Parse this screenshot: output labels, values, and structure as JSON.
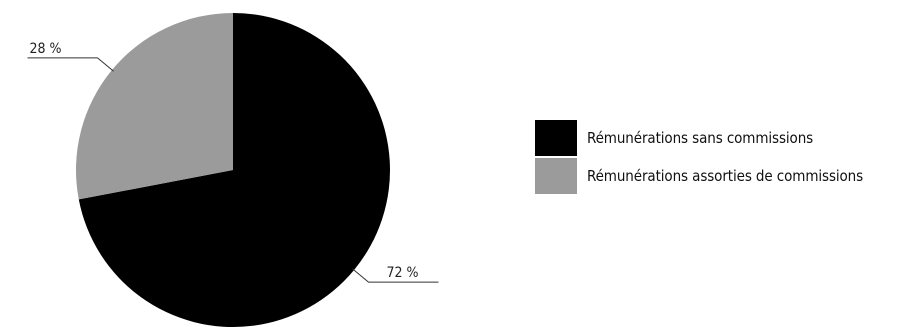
{
  "chart_data": {
    "type": "pie",
    "slices": [
      {
        "label": "Rémunérations sans commissions",
        "value": 72,
        "value_label": "72 %",
        "color": "#000000"
      },
      {
        "label": "Rémunérations assorties de commissions",
        "value": 28,
        "value_label": "28 %",
        "color": "#9b9b9b"
      }
    ],
    "start_angle": "12 o'clock",
    "direction": "clockwise",
    "legend_position": "right"
  }
}
